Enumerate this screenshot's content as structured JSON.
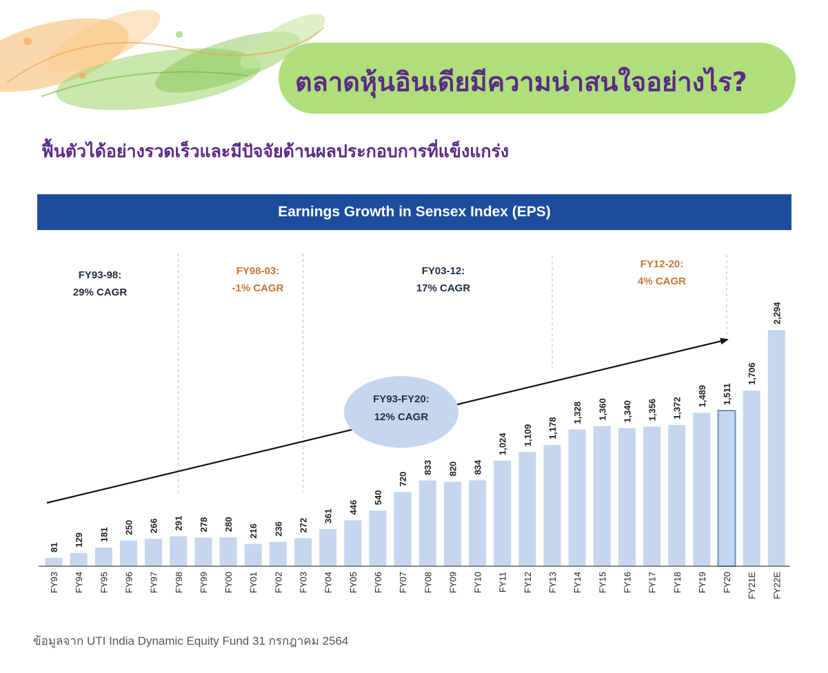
{
  "page": {
    "title": "ตลาดหุ้นอินเดียมีความน่าสนใจอย่างไร?",
    "subtitle": "ฟื้นตัวได้อย่างรวดเร็วและมีปัจจัยด้านผลประกอบการที่แข็งแกร่ง",
    "source": "ข้อมูลจาก UTI India Dynamic Equity Fund 31 กรกฎาคม 2564"
  },
  "colors": {
    "title": "#5b2a86",
    "pill": "#aedf7a",
    "header_bg": "#1c4d9c",
    "bar": "#c5d6ee",
    "bar_highlight_border": "#6d8fc4",
    "orange_text": "#c87533",
    "navy_text": "#1f2d3d"
  },
  "chart_data": {
    "type": "bar",
    "title": "Earnings Growth in Sensex Index (EPS)",
    "categories": [
      "FY93",
      "FY94",
      "FY95",
      "FY96",
      "FY97",
      "FY98",
      "FY99",
      "FY00",
      "FY01",
      "FY02",
      "FY03",
      "FY04",
      "FY05",
      "FY06",
      "FY07",
      "FY08",
      "FY09",
      "FY10",
      "FY11",
      "FY12",
      "FY13",
      "FY14",
      "FY15",
      "FY16",
      "FY17",
      "FY18",
      "FY19",
      "FY20",
      "FY21E",
      "FY22E"
    ],
    "values": [
      81,
      129,
      181,
      250,
      266,
      291,
      278,
      280,
      216,
      236,
      272,
      361,
      446,
      540,
      720,
      833,
      820,
      834,
      1024,
      1109,
      1178,
      1328,
      1360,
      1340,
      1356,
      1372,
      1489,
      1511,
      1706,
      2294
    ],
    "value_labels": [
      "81",
      "129",
      "181",
      "250",
      "266",
      "291",
      "278",
      "280",
      "216",
      "236",
      "272",
      "361",
      "446",
      "540",
      "720",
      "833",
      "820",
      "834",
      "1,024",
      "1,109",
      "1,178",
      "1,328",
      "1,360",
      "1,340",
      "1,356",
      "1,372",
      "1,489",
      "1,511",
      "1,706",
      "2,294"
    ],
    "highlighted_category": "FY20",
    "xlabel": "",
    "ylabel": "",
    "ylim": [
      0,
      2294
    ],
    "period_annotations": [
      {
        "line1": "FY93-98:",
        "line2": "29% CAGR",
        "color": "navy"
      },
      {
        "line1": "FY98-03:",
        "line2": "-1% CAGR",
        "color": "orange"
      },
      {
        "line1": "FY03-12:",
        "line2": "17% CAGR",
        "color": "navy"
      },
      {
        "line1": "FY12-20:",
        "line2": "4% CAGR",
        "color": "orange"
      }
    ],
    "period_dividers_after": [
      "FY98",
      "FY03",
      "FY13",
      "FY20"
    ],
    "overall_trend": {
      "line1": "FY93-FY20:",
      "line2": "12% CAGR"
    }
  }
}
